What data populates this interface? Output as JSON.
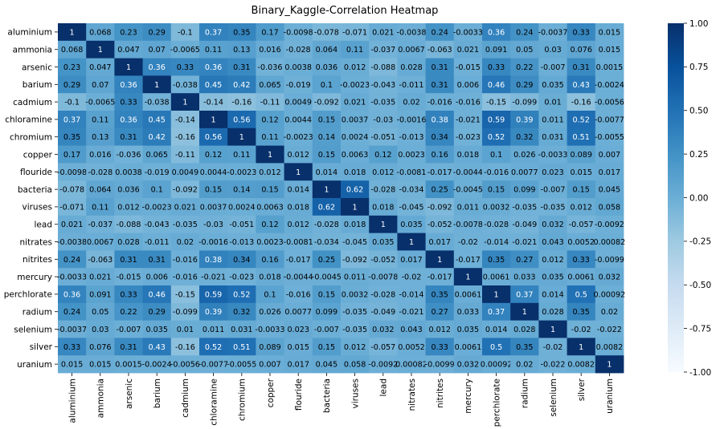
{
  "chart_data": {
    "type": "heatmap",
    "title": "Binary_Kaggle-Correlation Heatmap",
    "xlabel": "",
    "ylabel": "",
    "labels": [
      "aluminium",
      "ammonia",
      "arsenic",
      "barium",
      "cadmium",
      "chloramine",
      "chromium",
      "copper",
      "flouride",
      "bacteria",
      "viruses",
      "lead",
      "nitrates",
      "nitrites",
      "mercury",
      "perchlorate",
      "radium",
      "selenium",
      "silver",
      "uranium"
    ],
    "matrix_text": [
      [
        "1",
        "0.068",
        "0.23",
        "0.29",
        "-0.1",
        "0.37",
        "0.35",
        "0.17",
        "-0.0098",
        "-0.078",
        "-0.071",
        "0.021",
        "-0.0038",
        "0.24",
        "-0.0033",
        "0.36",
        "0.24",
        "-0.0037",
        "0.33",
        "0.015"
      ],
      [
        "0.068",
        "1",
        "0.047",
        "0.07",
        "-0.0065",
        "0.11",
        "0.13",
        "0.016",
        "-0.028",
        "0.064",
        "0.11",
        "-0.037",
        "0.0067",
        "-0.063",
        "0.021",
        "0.091",
        "0.05",
        "0.03",
        "0.076",
        "0.015"
      ],
      [
        "0.23",
        "0.047",
        "1",
        "0.36",
        "0.33",
        "0.36",
        "0.31",
        "-0.036",
        "0.0038",
        "0.036",
        "0.012",
        "-0.088",
        "0.028",
        "0.31",
        "-0.015",
        "0.33",
        "0.22",
        "-0.007",
        "0.31",
        "0.0015"
      ],
      [
        "0.29",
        "0.07",
        "0.36",
        "1",
        "-0.038",
        "0.45",
        "0.42",
        "0.065",
        "-0.019",
        "0.1",
        "-0.0023",
        "-0.043",
        "-0.011",
        "0.31",
        "0.006",
        "0.46",
        "0.29",
        "0.035",
        "0.43",
        "-0.0024"
      ],
      [
        "-0.1",
        "-0.0065",
        "0.33",
        "-0.038",
        "1",
        "-0.14",
        "-0.16",
        "-0.11",
        "0.0049",
        "-0.092",
        "0.021",
        "-0.035",
        "0.02",
        "-0.016",
        "-0.016",
        "-0.15",
        "-0.099",
        "0.01",
        "-0.16",
        "-0.0056"
      ],
      [
        "0.37",
        "0.11",
        "0.36",
        "0.45",
        "-0.14",
        "1",
        "0.56",
        "0.12",
        "0.0044",
        "0.15",
        "0.0037",
        "-0.03",
        "-0.0016",
        "0.38",
        "-0.021",
        "0.59",
        "0.39",
        "0.011",
        "0.52",
        "-0.0077"
      ],
      [
        "0.35",
        "0.13",
        "0.31",
        "0.42",
        "-0.16",
        "0.56",
        "1",
        "0.11",
        "-0.0023",
        "0.14",
        "0.0024",
        "-0.051",
        "-0.013",
        "0.34",
        "-0.023",
        "0.52",
        "0.32",
        "0.031",
        "0.51",
        "-0.0055"
      ],
      [
        "0.17",
        "0.016",
        "-0.036",
        "0.065",
        "-0.11",
        "0.12",
        "0.11",
        "1",
        "0.012",
        "0.15",
        "0.0063",
        "0.12",
        "0.0023",
        "0.16",
        "0.018",
        "0.1",
        "0.026",
        "-0.0033",
        "0.089",
        "0.007"
      ],
      [
        "-0.0098",
        "-0.028",
        "0.0038",
        "-0.019",
        "0.0049",
        "0.0044",
        "-0.0023",
        "0.012",
        "1",
        "0.014",
        "0.018",
        "0.012",
        "-0.0081",
        "-0.017",
        "-0.0044",
        "-0.016",
        "0.0077",
        "0.023",
        "0.015",
        "0.017"
      ],
      [
        "-0.078",
        "0.064",
        "0.036",
        "0.1",
        "-0.092",
        "0.15",
        "0.14",
        "0.15",
        "0.014",
        "1",
        "0.62",
        "-0.028",
        "-0.034",
        "0.25",
        "-0.0045",
        "0.15",
        "0.099",
        "-0.007",
        "0.15",
        "0.045"
      ],
      [
        "-0.071",
        "0.11",
        "0.012",
        "-0.0023",
        "0.021",
        "0.0037",
        "0.0024",
        "0.0063",
        "0.018",
        "0.62",
        "1",
        "0.018",
        "-0.045",
        "-0.092",
        "0.011",
        "0.0032",
        "-0.035",
        "-0.035",
        "0.012",
        "0.058"
      ],
      [
        "0.021",
        "-0.037",
        "-0.088",
        "-0.043",
        "-0.035",
        "-0.03",
        "-0.051",
        "0.12",
        "0.012",
        "-0.028",
        "0.018",
        "1",
        "0.035",
        "-0.052",
        "-0.0078",
        "-0.028",
        "-0.049",
        "0.032",
        "-0.057",
        "-0.0092"
      ],
      [
        "-0.0038",
        "0.0067",
        "0.028",
        "-0.011",
        "0.02",
        "-0.0016",
        "-0.013",
        "0.0023",
        "-0.0081",
        "-0.034",
        "-0.045",
        "0.035",
        "1",
        "0.017",
        "-0.02",
        "-0.014",
        "-0.021",
        "0.043",
        "0.0052",
        "0.00082"
      ],
      [
        "0.24",
        "-0.063",
        "0.31",
        "0.31",
        "-0.016",
        "0.38",
        "0.34",
        "0.16",
        "-0.017",
        "0.25",
        "-0.092",
        "-0.052",
        "0.017",
        "1",
        "-0.017",
        "0.35",
        "0.27",
        "0.012",
        "0.33",
        "-0.0099"
      ],
      [
        "-0.0033",
        "0.021",
        "-0.015",
        "0.006",
        "-0.016",
        "-0.021",
        "-0.023",
        "0.018",
        "-0.0044",
        "-0.0045",
        "0.011",
        "-0.0078",
        "-0.02",
        "-0.017",
        "1",
        "0.0061",
        "0.033",
        "0.035",
        "0.0061",
        "0.032"
      ],
      [
        "0.36",
        "0.091",
        "0.33",
        "0.46",
        "-0.15",
        "0.59",
        "0.52",
        "0.1",
        "-0.016",
        "0.15",
        "0.0032",
        "-0.028",
        "-0.014",
        "0.35",
        "0.0061",
        "1",
        "0.37",
        "0.014",
        "0.5",
        "0.00092"
      ],
      [
        "0.24",
        "0.05",
        "0.22",
        "0.29",
        "-0.099",
        "0.39",
        "0.32",
        "0.026",
        "0.0077",
        "0.099",
        "-0.035",
        "-0.049",
        "-0.021",
        "0.27",
        "0.033",
        "0.37",
        "1",
        "0.028",
        "0.35",
        "0.02"
      ],
      [
        "-0.0037",
        "0.03",
        "-0.007",
        "0.035",
        "0.01",
        "0.011",
        "0.031",
        "-0.0033",
        "0.023",
        "-0.007",
        "-0.035",
        "0.032",
        "0.043",
        "0.012",
        "0.035",
        "0.014",
        "0.028",
        "1",
        "-0.02",
        "-0.022"
      ],
      [
        "0.33",
        "0.076",
        "0.31",
        "0.43",
        "-0.16",
        "0.52",
        "0.51",
        "0.089",
        "0.015",
        "0.15",
        "0.012",
        "-0.057",
        "0.0052",
        "0.33",
        "0.0061",
        "0.5",
        "0.35",
        "-0.02",
        "1",
        "0.0082"
      ],
      [
        "0.015",
        "0.015",
        "0.0015",
        "-0.0024",
        "-0.0056",
        "-0.0077",
        "-0.0055",
        "0.007",
        "0.017",
        "0.045",
        "0.058",
        "-0.0092",
        "0.00082",
        "-0.0099",
        "0.032",
        "0.00092",
        "0.02",
        "-0.022",
        "0.0082",
        "1"
      ]
    ],
    "colorbar": {
      "vmin": -1.0,
      "vmax": 1.0,
      "ticks": [
        "1.00",
        "0.75",
        "0.50",
        "0.25",
        "0.00",
        "-0.25",
        "-0.50",
        "-0.75",
        "-1.00"
      ],
      "colormap": "Blues",
      "colors": [
        "#f7fbff",
        "#deebf7",
        "#c6dbef",
        "#9ecae1",
        "#6baed6",
        "#4292c6",
        "#2171b5",
        "#08519c",
        "#08306b"
      ]
    }
  }
}
